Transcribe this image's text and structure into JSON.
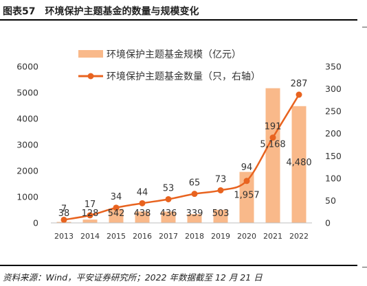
{
  "figure_title": "图表57　环境保护主题基金的数量与规模变化",
  "source_note": "资料来源：Wind，平安证券研究所；2022 年数据截至 12 月 21 日",
  "chart_data": {
    "type": "bar",
    "categories": [
      "2013",
      "2014",
      "2015",
      "2016",
      "2017",
      "2018",
      "2019",
      "2020",
      "2021",
      "2022"
    ],
    "series": [
      {
        "name": "环境保护主题基金规模（亿元）",
        "type": "bar",
        "axis": "left",
        "values": [
          38,
          128,
          542,
          438,
          436,
          339,
          503,
          1957,
          5168,
          4480
        ],
        "labels": [
          "38",
          "128",
          "542",
          "438",
          "436",
          "339",
          "503",
          "1,957",
          "5,168",
          "4,480"
        ],
        "color": "#f9b98a"
      },
      {
        "name": "环境保护主题基金数量（只，右轴）",
        "type": "line",
        "axis": "right",
        "values": [
          7,
          17,
          34,
          44,
          53,
          65,
          73,
          94,
          191,
          287
        ],
        "labels": [
          "7",
          "17",
          "34",
          "44",
          "53",
          "65",
          "73",
          "94",
          "191",
          "287"
        ],
        "color": "#e8631f"
      }
    ],
    "ylim_left": [
      0,
      6000
    ],
    "yticks_left": [
      "0",
      "1000",
      "2000",
      "3000",
      "4000",
      "5000",
      "6000"
    ],
    "ylim_right": [
      0,
      350
    ],
    "yticks_right": [
      "0",
      "50",
      "100",
      "150",
      "200",
      "250",
      "300",
      "350"
    ],
    "legend_position": "top-left",
    "grid": false
  }
}
